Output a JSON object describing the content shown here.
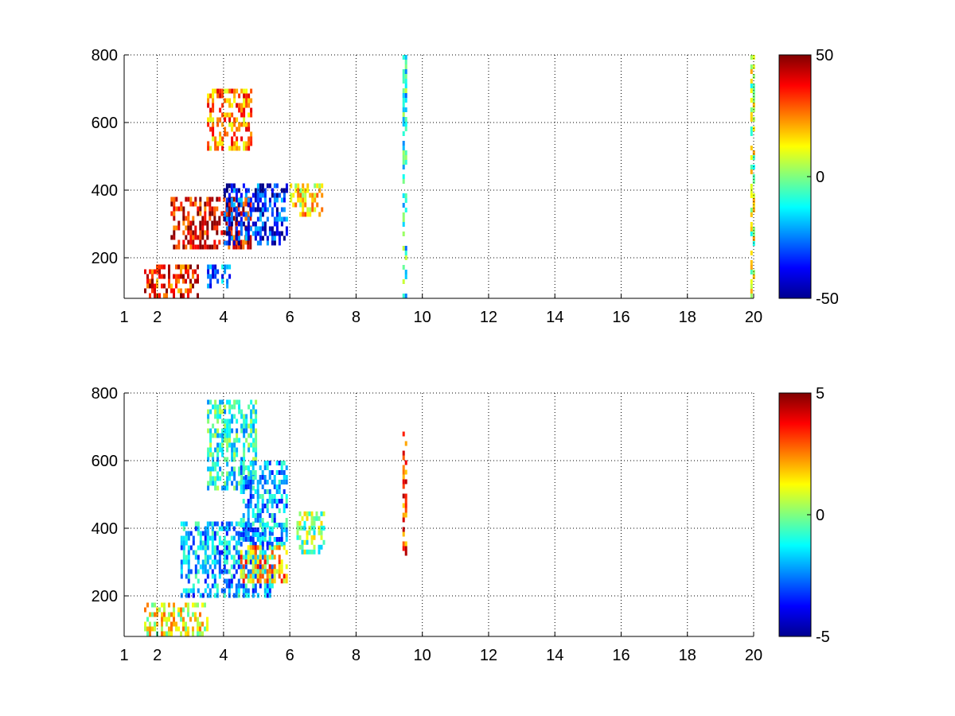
{
  "chart_data": [
    {
      "type": "heatmap",
      "title": "",
      "xlabel": "",
      "ylabel": "",
      "xlim": [
        1,
        20
      ],
      "ylim": [
        80,
        800
      ],
      "xticks": [
        1,
        2,
        4,
        6,
        8,
        10,
        12,
        14,
        16,
        18,
        20
      ],
      "yticks": [
        200,
        400,
        600,
        800
      ],
      "xtick_labels": [
        "1",
        "2",
        "4",
        "6",
        "8",
        "10",
        "12",
        "14",
        "16",
        "18",
        "20"
      ],
      "ytick_labels": [
        "200",
        "400",
        "600",
        "800"
      ],
      "grid": true,
      "colormap": "jet",
      "clim": [
        -50,
        50
      ],
      "colorbar_ticks": [
        50,
        0,
        -50
      ],
      "colorbar_labels": [
        "50",
        "0",
        "-50"
      ],
      "features": [
        {
          "x": [
            1.6,
            3.2
          ],
          "y": [
            90,
            180
          ],
          "value": 35
        },
        {
          "x": [
            2.4,
            4.8
          ],
          "y": [
            230,
            380
          ],
          "value": 40
        },
        {
          "x": [
            3.5,
            4.8
          ],
          "y": [
            520,
            700
          ],
          "value": 25
        },
        {
          "x": [
            4.0,
            5.9
          ],
          "y": [
            250,
            420
          ],
          "value": -35
        },
        {
          "x": [
            3.5,
            4.2
          ],
          "y": [
            120,
            180
          ],
          "value": -25
        },
        {
          "x": [
            6.0,
            7.0
          ],
          "y": [
            330,
            420
          ],
          "value": 15
        },
        {
          "x": [
            9.4,
            9.5
          ],
          "y": [
            80,
            800
          ],
          "value": -10
        },
        {
          "x": [
            19.9,
            20.0
          ],
          "y": [
            80,
            800
          ],
          "value": 5
        }
      ]
    },
    {
      "type": "heatmap",
      "title": "",
      "xlabel": "",
      "ylabel": "",
      "xlim": [
        1,
        20
      ],
      "ylim": [
        80,
        800
      ],
      "xticks": [
        1,
        2,
        4,
        6,
        8,
        10,
        12,
        14,
        16,
        18,
        20
      ],
      "yticks": [
        200,
        400,
        600,
        800
      ],
      "xtick_labels": [
        "1",
        "2",
        "4",
        "6",
        "8",
        "10",
        "12",
        "14",
        "16",
        "18",
        "20"
      ],
      "ytick_labels": [
        "200",
        "400",
        "600",
        "800"
      ],
      "grid": true,
      "colormap": "jet",
      "clim": [
        -5,
        5
      ],
      "colorbar_ticks": [
        5,
        0,
        -5
      ],
      "colorbar_labels": [
        "5",
        "0",
        "-5"
      ],
      "features": [
        {
          "x": [
            1.6,
            3.5
          ],
          "y": [
            90,
            180
          ],
          "value": 1
        },
        {
          "x": [
            2.7,
            5.5
          ],
          "y": [
            200,
            420
          ],
          "value": -2
        },
        {
          "x": [
            3.5,
            5.0
          ],
          "y": [
            520,
            780
          ],
          "value": -1
        },
        {
          "x": [
            4.5,
            5.9
          ],
          "y": [
            350,
            600
          ],
          "value": -2
        },
        {
          "x": [
            4.5,
            5.9
          ],
          "y": [
            250,
            350
          ],
          "value": 2
        },
        {
          "x": [
            6.2,
            7.0
          ],
          "y": [
            330,
            450
          ],
          "value": 0
        },
        {
          "x": [
            9.4,
            9.5
          ],
          "y": [
            330,
            700
          ],
          "value": 3
        }
      ]
    }
  ]
}
